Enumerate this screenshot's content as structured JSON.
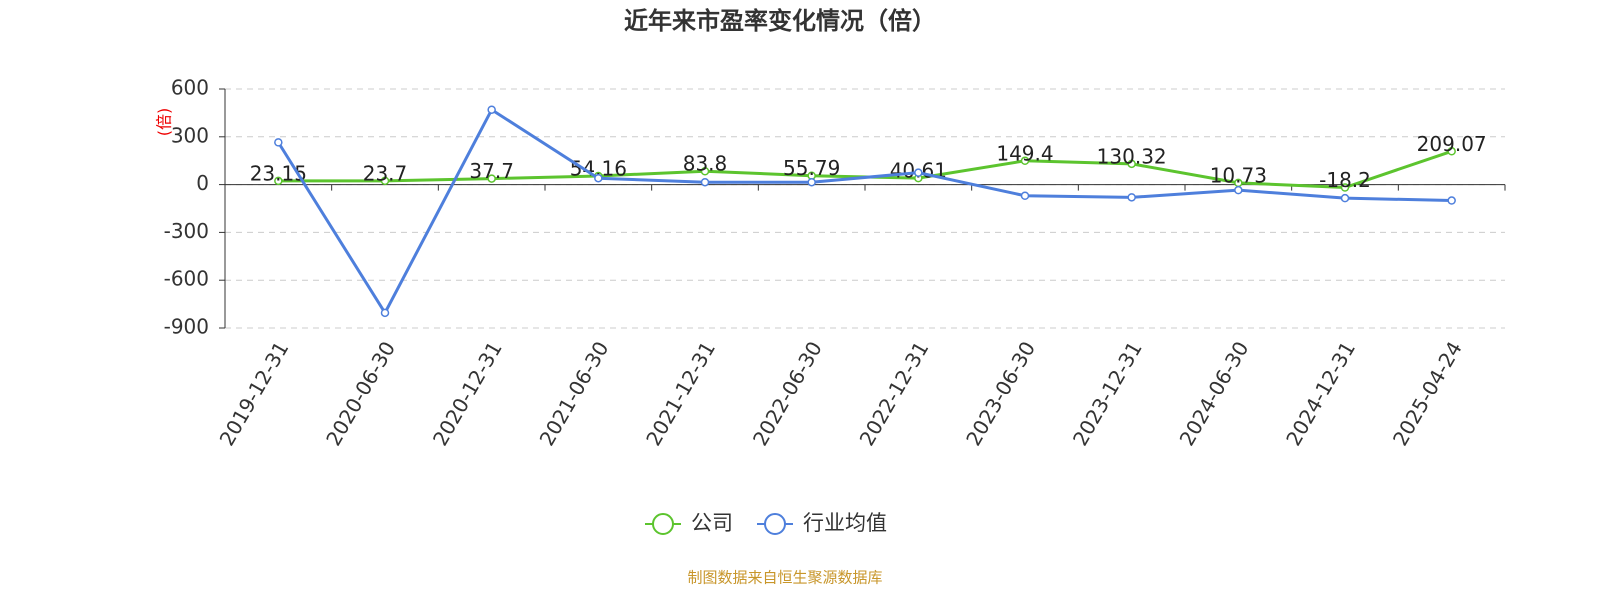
{
  "chart_data": {
    "type": "line",
    "title": "近年来市盈率变化情况（倍）",
    "y_label": "(倍)",
    "categories": [
      "2019-12-31",
      "2020-06-30",
      "2020-12-31",
      "2021-06-30",
      "2021-12-31",
      "2022-06-30",
      "2022-12-31",
      "2023-06-30",
      "2023-12-31",
      "2024-06-30",
      "2024-12-31",
      "2025-04-24"
    ],
    "series": [
      {
        "name": "公司",
        "color": "#5cc42e",
        "values": [
          23.15,
          23.7,
          37.7,
          54.16,
          83.8,
          55.79,
          40.61,
          149.4,
          130.32,
          10.73,
          -18.2,
          209.07
        ],
        "data_labels": true
      },
      {
        "name": "行业均值",
        "color": "#4e7fdc",
        "values": [
          265,
          -805,
          470,
          40,
          15,
          15,
          75,
          -70,
          -80,
          -35,
          -85,
          -100
        ]
      }
    ],
    "ylim": [
      -900,
      600
    ],
    "yticks": [
      600,
      300,
      0,
      -300,
      -600,
      -900
    ],
    "grid": true,
    "legend": "bottom",
    "source": "制图数据来自恒生聚源数据库"
  }
}
